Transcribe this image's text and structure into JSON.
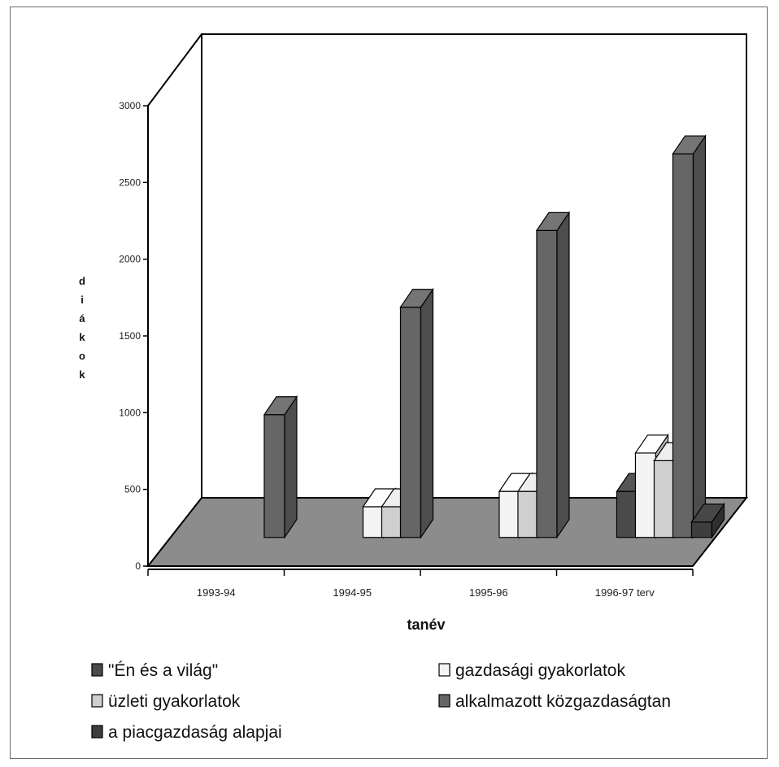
{
  "chart_data": {
    "type": "bar",
    "categories": [
      "1993-94",
      "1994-95",
      "1995-96",
      "1996-97 terv"
    ],
    "xlabel": "tanév",
    "ylabel": "diákok",
    "yticks": [
      "0",
      "500",
      "1000",
      "1500",
      "2000",
      "2500",
      "3000"
    ],
    "ylim": [
      0,
      3000
    ],
    "series": [
      {
        "name": "\"Én és a világ\"",
        "values": [
          0,
          0,
          0,
          300
        ],
        "color": "#4a4a4a"
      },
      {
        "name": "gazdasági gyakorlatok",
        "values": [
          0,
          200,
          300,
          550
        ],
        "color": "#f4f4f4"
      },
      {
        "name": "üzleti gyakorlatok",
        "values": [
          0,
          200,
          300,
          500
        ],
        "color": "#cfcfcf"
      },
      {
        "name": "alkalmazott közgazdaságtan",
        "values": [
          800,
          1500,
          2000,
          2500
        ],
        "color": "#666666"
      },
      {
        "name": "a piacgazdaság alapjai",
        "values": [
          0,
          0,
          0,
          100
        ],
        "color": "#3e3e3e"
      }
    ],
    "legend_position": "bottom"
  }
}
